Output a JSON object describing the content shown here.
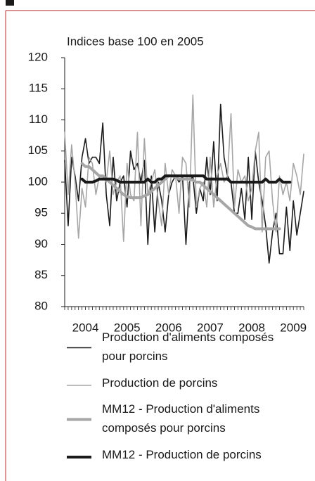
{
  "chart_data": {
    "type": "line",
    "title": "Indices base 100 en 2005",
    "categories": [
      null,
      null,
      null,
      null,
      null,
      null,
      "2004",
      null,
      null,
      null,
      null,
      null,
      null,
      null,
      null,
      null,
      null,
      null,
      "2005",
      null,
      null,
      null,
      null,
      null,
      null,
      null,
      null,
      null,
      null,
      null,
      "2006",
      null,
      null,
      null,
      null,
      null,
      null,
      null,
      null,
      null,
      null,
      null,
      "2007",
      null,
      null,
      null,
      null,
      null,
      null,
      null,
      null,
      null,
      null,
      null,
      "2008",
      null,
      null,
      null,
      null,
      null,
      null,
      null,
      null,
      null,
      null,
      null,
      "2009",
      null,
      null,
      null
    ],
    "ylim": [
      80,
      120
    ],
    "yticks": [
      80,
      85,
      90,
      95,
      100,
      105,
      110,
      115,
      120
    ],
    "grid": false,
    "series": [
      {
        "name": "Production d'aliments composés pour porcins",
        "color": "#1a1a1a",
        "line_width": 1.6,
        "values": [
          103.5,
          93,
          104,
          101,
          97,
          104,
          107,
          103,
          104,
          104,
          103,
          109.5,
          98,
          93,
          104,
          97,
          100,
          101,
          96,
          105,
          102,
          103,
          100,
          103.5,
          90,
          101,
          92,
          100,
          97,
          92,
          98,
          100,
          101,
          100,
          101,
          90,
          100,
          101,
          95,
          99,
          97,
          104,
          98,
          106.5,
          97,
          112.5,
          104,
          101,
          100,
          95,
          95,
          99,
          94,
          104,
          94,
          105,
          100,
          97,
          93,
          87,
          92,
          95,
          88.5,
          88.5,
          96,
          89,
          97,
          91.5,
          95,
          98.5
        ]
      },
      {
        "name": "Production de porcins",
        "color": "#a6a6a6",
        "line_width": 1.6,
        "values": [
          108,
          98,
          106,
          100,
          91,
          99,
          96,
          104,
          103,
          98,
          101,
          101,
          100,
          105,
          98,
          100,
          101,
          90.5,
          103,
          98,
          97,
          108,
          93,
          107,
          98,
          100,
          102,
          97,
          93,
          103,
          98,
          102,
          101,
          95,
          104,
          103,
          96,
          114,
          96,
          99,
          100,
          96,
          104,
          96,
          101,
          103,
          100,
          101,
          111,
          96,
          102,
          100,
          101,
          97,
          99,
          105,
          108,
          92,
          104,
          105,
          97,
          92,
          101,
          98,
          100,
          97,
          103,
          101,
          98,
          104.5
        ]
      },
      {
        "name": "MM12 - Production d'aliments composés pour porcins",
        "color": "#a6a6a6",
        "line_width": 4,
        "values": [
          null,
          null,
          null,
          null,
          null,
          103,
          102.5,
          102.5,
          102,
          101.5,
          101,
          101,
          100.5,
          100,
          99.5,
          99,
          98.5,
          98,
          97.7,
          97.5,
          97.5,
          97.5,
          97.5,
          97.8,
          98,
          98.5,
          99,
          99.5,
          100,
          100.5,
          101,
          101,
          100.8,
          100.5,
          100.5,
          100.5,
          100.5,
          100.3,
          100,
          100,
          99.5,
          99,
          98.5,
          98,
          97.5,
          97,
          96.5,
          96,
          95.5,
          95,
          94.5,
          94,
          93.5,
          93,
          92.8,
          92.5,
          92.5,
          92.5,
          92.5,
          92.5,
          92.5,
          92.5,
          92.5,
          null,
          null,
          null,
          null,
          null,
          null,
          null
        ]
      },
      {
        "name": "MM12 - Production de porcins",
        "color": "#1a1a1a",
        "line_width": 4,
        "values": [
          null,
          null,
          null,
          null,
          null,
          100.5,
          100,
          100,
          100,
          100.2,
          100.5,
          100.5,
          100.5,
          100.5,
          100.5,
          100.3,
          100,
          100,
          100,
          100,
          100,
          100,
          100,
          100,
          100.5,
          100,
          100,
          100.5,
          100.5,
          101,
          101,
          101,
          101,
          101,
          101,
          101,
          101,
          101,
          101,
          101,
          101,
          100.5,
          100.5,
          100.5,
          100.5,
          100.5,
          100.5,
          100.5,
          100,
          100,
          100,
          100,
          100,
          100,
          100,
          100,
          100,
          100,
          100.5,
          100,
          100,
          100,
          100.5,
          100,
          100,
          100,
          null,
          null,
          null,
          null
        ]
      }
    ]
  }
}
